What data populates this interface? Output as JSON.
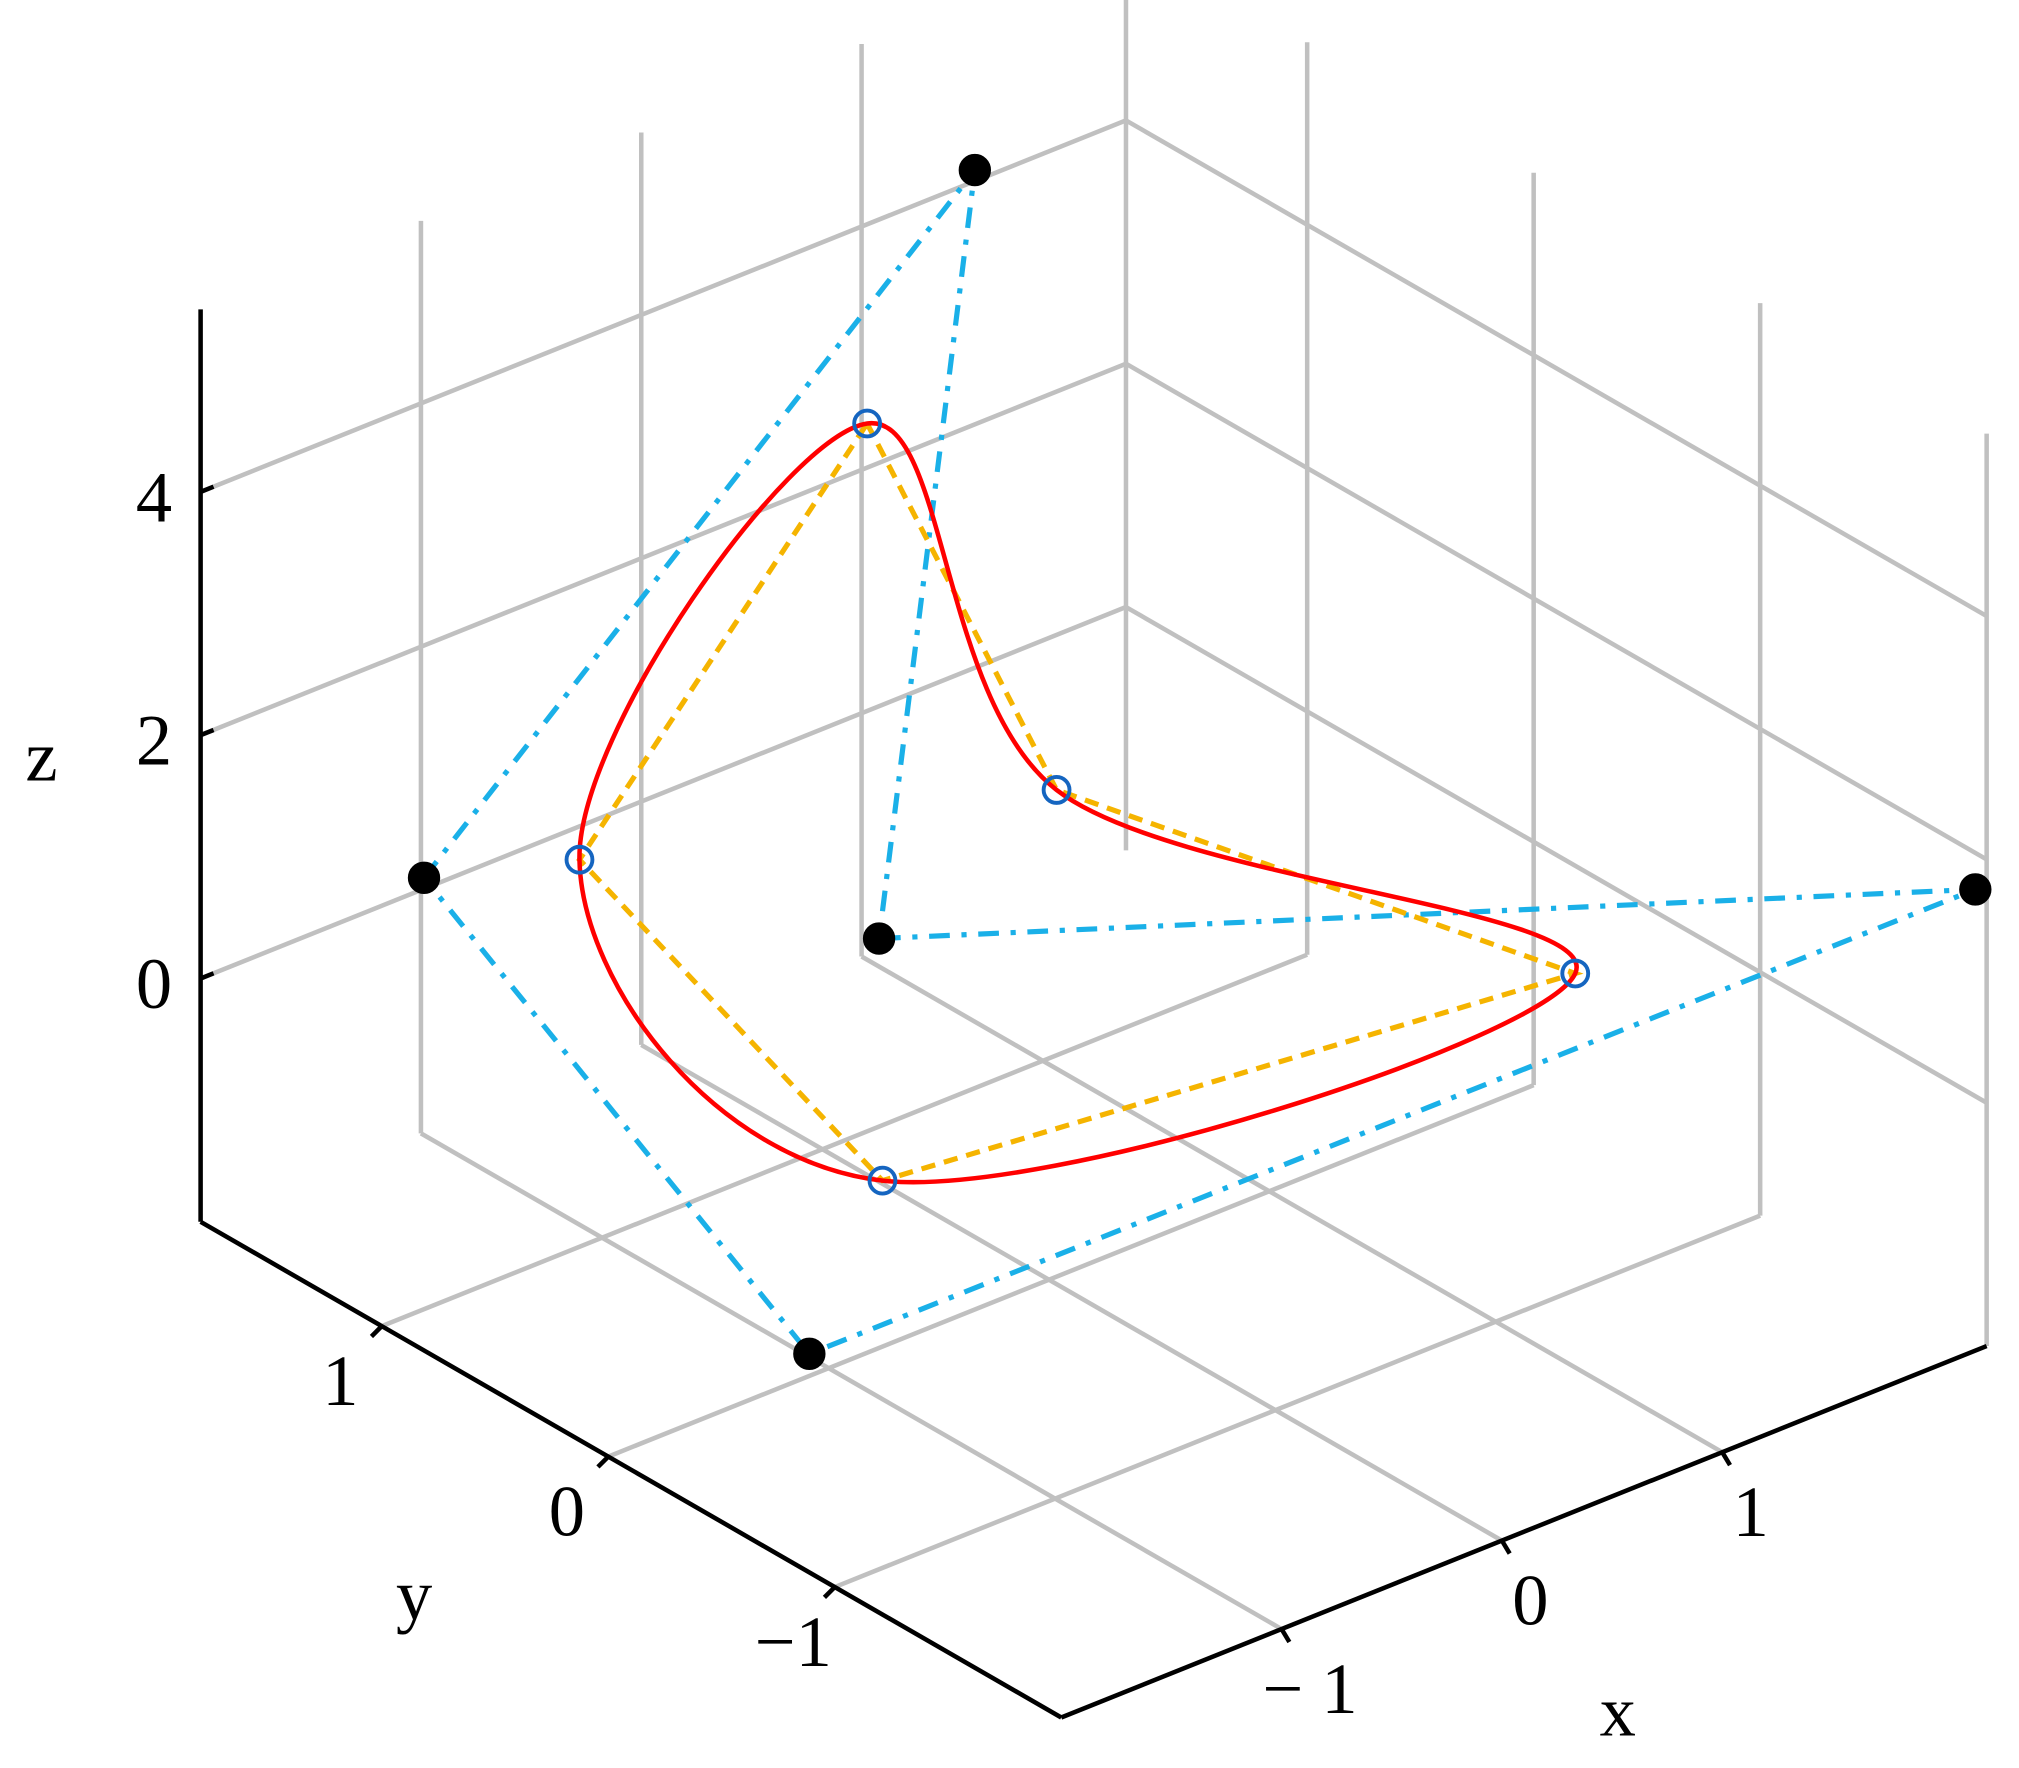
{
  "chart_data": {
    "type": "line3d",
    "xlabel": "x",
    "ylabel": "y",
    "zlabel": "z",
    "xlim": [
      -2,
      2.2
    ],
    "ylim": [
      -2,
      1.8
    ],
    "zlim": [
      -2,
      5.5
    ],
    "xticks": [
      {
        "value": -1,
        "label": "− 1"
      },
      0,
      1
    ],
    "yticks": [
      {
        "value": -1,
        "label": "−1"
      },
      0,
      1
    ],
    "zticks": [
      0,
      2,
      4
    ],
    "grid": true,
    "series": [
      {
        "color": "#1ab0e8",
        "line_style": "dashdot",
        "marker": "filled",
        "marker_color": "#000000",
        "closed": true,
        "x": [
          -1.5,
          1,
          0,
          2.2,
          -1.55
        ],
        "y": [
          1.3,
          1.3,
          0.75,
          -1.95,
          -0.45
        ],
        "z": [
          1,
          5,
          0,
          1.7,
          -1
        ]
      },
      {
        "color": "#f5b400",
        "line_style": "dashed",
        "marker": "open",
        "marker_color": "#1565c0",
        "closed": true,
        "x": [
          0.1,
          0.6,
          1.7,
          -0.55,
          -1
        ],
        "y": [
          0.9,
          0.55,
          -0.67,
          0.2,
          1.1
        ],
        "z": [
          4,
          1,
          0,
          -1,
          1
        ]
      },
      {
        "color": "#ff0000",
        "line_style": "solid",
        "marker": "none",
        "closed": true,
        "smooth": true,
        "x": [
          0.1,
          0.6,
          1.7,
          -0.55,
          -1
        ],
        "y": [
          0.9,
          0.55,
          -0.67,
          0.2,
          1.1
        ],
        "z": [
          4,
          1,
          0,
          -1,
          1
        ]
      }
    ]
  }
}
